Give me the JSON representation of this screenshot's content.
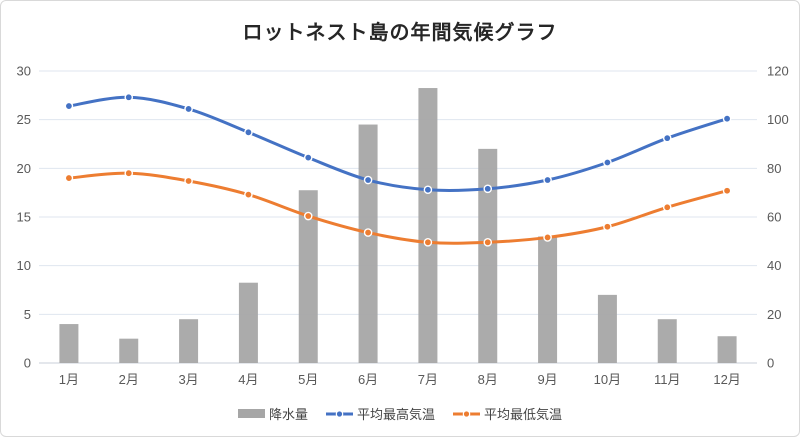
{
  "title": "ロットネスト島の年間気候グラフ",
  "colors": {
    "bar": "#a6a6a6",
    "max_temp": "#4472c4",
    "min_temp": "#ed7d31",
    "grid": "#dfe6ef",
    "axis_line": "#c9cfd8",
    "tick_label": "#595959",
    "title": "#262626",
    "border": "#d9d9d9",
    "marker_ring": "#ffffff"
  },
  "legend": [
    {
      "label": "降水量",
      "type": "bar"
    },
    {
      "label": "平均最高気温",
      "type": "line"
    },
    {
      "label": "平均最低気温",
      "type": "line"
    }
  ],
  "chart_data": {
    "type": "combo",
    "title": "ロットネスト島の年間気候グラフ",
    "categories": [
      "1月",
      "2月",
      "3月",
      "4月",
      "5月",
      "6月",
      "7月",
      "8月",
      "9月",
      "10月",
      "11月",
      "12月"
    ],
    "series": [
      {
        "name": "降水量",
        "type": "bar",
        "axis": "right",
        "unit": "mm",
        "values": [
          16,
          10,
          18,
          33,
          71,
          98,
          113,
          88,
          52,
          28,
          18,
          11
        ]
      },
      {
        "name": "平均最高気温",
        "type": "line",
        "axis": "left",
        "unit": "°C",
        "values": [
          26.4,
          27.3,
          26.1,
          23.7,
          21.1,
          18.8,
          17.8,
          17.9,
          18.8,
          20.6,
          23.1,
          25.1
        ]
      },
      {
        "name": "平均最低気温",
        "type": "line",
        "axis": "left",
        "unit": "°C",
        "values": [
          19.0,
          19.5,
          18.7,
          17.3,
          15.1,
          13.4,
          12.4,
          12.4,
          12.9,
          14.0,
          16.0,
          17.7
        ]
      }
    ],
    "left_axis": {
      "min": 0,
      "max": 30,
      "step": 5,
      "ticks": [
        0,
        5,
        10,
        15,
        20,
        25,
        30
      ]
    },
    "right_axis": {
      "min": 0,
      "max": 120,
      "step": 20,
      "ticks": [
        0,
        20,
        40,
        60,
        80,
        100,
        120
      ]
    },
    "grid": true,
    "smooth_lines": true,
    "legend_position": "bottom"
  }
}
